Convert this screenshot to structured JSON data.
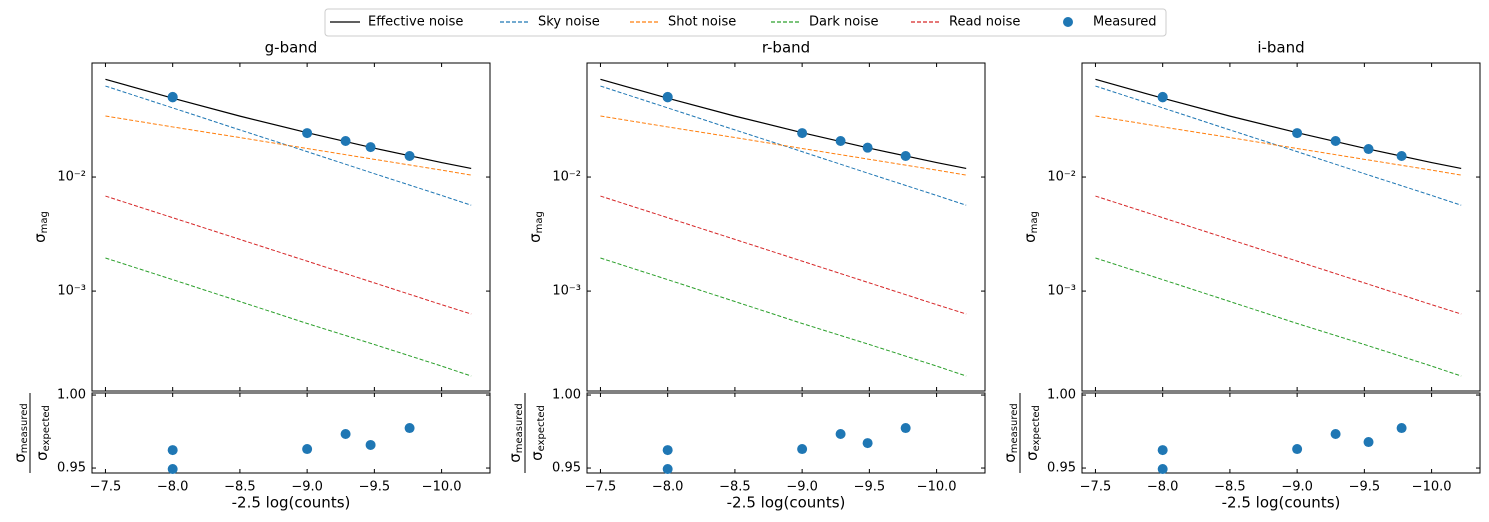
{
  "chart_data": [
    {
      "type": "line",
      "title": "g-band",
      "ylabel": {
        "symbol": "σ",
        "subscript": "mag"
      },
      "yscale": "log",
      "xlim": [
        -7.4,
        -10.36
      ],
      "ylim": [
        0.000133,
        0.1
      ],
      "xticks": [
        {
          "value": -7.5,
          "label": "−7.5"
        },
        {
          "value": -8.0,
          "label": "−8.0"
        },
        {
          "value": -8.5,
          "label": "−8.5"
        },
        {
          "value": -9.0,
          "label": "−9.0"
        },
        {
          "value": -9.5,
          "label": "−9.5"
        },
        {
          "value": -10.0,
          "label": "−10.0"
        }
      ],
      "yticks": [
        {
          "value": 0.01,
          "label": "10⁻²"
        },
        {
          "value": 0.001,
          "label": "10⁻³"
        }
      ],
      "series": [
        {
          "name": "Effective noise",
          "color": "#000000",
          "line": "solid",
          "x": [
            -7.5,
            -8.0,
            -8.5,
            -9.0,
            -9.5,
            -10.0,
            -10.22
          ],
          "values": [
            0.0719,
            0.0491,
            0.0342,
            0.0245,
            0.0179,
            0.0134,
            0.0119
          ]
        },
        {
          "name": "Sky noise",
          "color": "#1f77b4",
          "line": "dashed",
          "x": [
            -7.5,
            -8.0,
            -8.5,
            -9.0,
            -9.5,
            -10.0,
            -10.22
          ],
          "values": [
            0.0628,
            0.0404,
            0.0259,
            0.0167,
            0.0107,
            0.0069,
            0.00566
          ]
        },
        {
          "name": "Shot noise",
          "color": "#ff7f0e",
          "line": "dashed",
          "x": [
            -7.5,
            -8.0,
            -8.5,
            -9.0,
            -9.5,
            -10.0,
            -10.22
          ],
          "values": [
            0.0343,
            0.0275,
            0.0222,
            0.0178,
            0.0143,
            0.0115,
            0.0104
          ]
        },
        {
          "name": "Dark noise",
          "color": "#2ca02c",
          "line": "dashed",
          "x": [
            -7.5,
            -8.0,
            -8.5,
            -9.0,
            -9.5,
            -10.0,
            -10.22
          ],
          "values": [
            0.00195,
            0.00126,
            0.00081,
            0.00052,
            0.00034,
            0.00022,
            0.00018
          ]
        },
        {
          "name": "Read noise",
          "color": "#d62728",
          "line": "dashed",
          "x": [
            -7.5,
            -8.0,
            -8.5,
            -9.0,
            -9.5,
            -10.0,
            -10.22
          ],
          "values": [
            0.00681,
            0.0044,
            0.00284,
            0.00183,
            0.00118,
            0.00076,
            0.00063
          ]
        },
        {
          "name": "Measured",
          "color": "#1f77b4",
          "line": "none",
          "x": [
            -8.0,
            -8.0,
            -9.0,
            -9.286,
            -9.472,
            -9.762
          ],
          "values": [
            0.0504,
            0.05,
            0.0243,
            0.0207,
            0.0183,
            0.0153
          ]
        }
      ]
    },
    {
      "type": "scatter",
      "xlabel": "-2.5 log(counts)",
      "ylabel": {
        "numerator": {
          "symbol": "σ",
          "subscript": "measured"
        },
        "denominator": {
          "symbol": "σ",
          "subscript": "expected"
        }
      },
      "xlim": [
        -7.4,
        -10.36
      ],
      "ylim": [
        0.9466,
        1.0014
      ],
      "xticks": [
        {
          "value": -7.5,
          "label": "−7.5"
        },
        {
          "value": -8.0,
          "label": "−8.0"
        },
        {
          "value": -8.5,
          "label": "−8.5"
        },
        {
          "value": -9.0,
          "label": "−9.0"
        },
        {
          "value": -9.5,
          "label": "−9.5"
        },
        {
          "value": -10.0,
          "label": "−10.0"
        }
      ],
      "yticks": [
        {
          "value": 1.0,
          "label": "1.00"
        },
        0.95
      ],
      "color": "#1f77b4",
      "x": [
        -8.0,
        -8.0,
        -9.0,
        -9.286,
        -9.472,
        -9.762
      ],
      "values": [
        0.9623,
        0.9493,
        0.963,
        0.9733,
        0.9658,
        0.9774
      ]
    },
    {
      "type": "line",
      "title": "r-band",
      "ylabel": {
        "symbol": "σ",
        "subscript": "mag"
      },
      "yscale": "log",
      "xlim": [
        -7.4,
        -10.36
      ],
      "ylim": [
        0.000133,
        0.1
      ],
      "xticks": [
        {
          "value": -7.5,
          "label": "−7.5"
        },
        {
          "value": -8.0,
          "label": "−8.0"
        },
        {
          "value": -8.5,
          "label": "−8.5"
        },
        {
          "value": -9.0,
          "label": "−9.0"
        },
        {
          "value": -9.5,
          "label": "−9.5"
        },
        {
          "value": -10.0,
          "label": "−10.0"
        }
      ],
      "yticks": [
        {
          "value": 0.01,
          "label": "10⁻²"
        },
        {
          "value": 0.001,
          "label": "10⁻³"
        }
      ],
      "series": [
        {
          "name": "Effective noise",
          "color": "#000000",
          "line": "solid",
          "x": [
            -7.5,
            -8.0,
            -8.5,
            -9.0,
            -9.5,
            -10.0,
            -10.22
          ],
          "values": [
            0.0719,
            0.0491,
            0.0342,
            0.0245,
            0.0179,
            0.0134,
            0.0119
          ]
        },
        {
          "name": "Sky noise",
          "color": "#1f77b4",
          "line": "dashed",
          "x": [
            -7.5,
            -8.0,
            -8.5,
            -9.0,
            -9.5,
            -10.0,
            -10.22
          ],
          "values": [
            0.0628,
            0.0404,
            0.0259,
            0.0167,
            0.0107,
            0.0069,
            0.00566
          ]
        },
        {
          "name": "Shot noise",
          "color": "#ff7f0e",
          "line": "dashed",
          "x": [
            -7.5,
            -8.0,
            -8.5,
            -9.0,
            -9.5,
            -10.0,
            -10.22
          ],
          "values": [
            0.0343,
            0.0275,
            0.0222,
            0.0178,
            0.0143,
            0.0115,
            0.0104
          ]
        },
        {
          "name": "Dark noise",
          "color": "#2ca02c",
          "line": "dashed",
          "x": [
            -7.5,
            -8.0,
            -8.5,
            -9.0,
            -9.5,
            -10.0,
            -10.22
          ],
          "values": [
            0.00195,
            0.00126,
            0.00081,
            0.00052,
            0.00034,
            0.00022,
            0.00018
          ]
        },
        {
          "name": "Read noise",
          "color": "#d62728",
          "line": "dashed",
          "x": [
            -7.5,
            -8.0,
            -8.5,
            -9.0,
            -9.5,
            -10.0,
            -10.22
          ],
          "values": [
            0.00681,
            0.0044,
            0.00284,
            0.00183,
            0.00118,
            0.00076,
            0.00063
          ]
        },
        {
          "name": "Measured",
          "color": "#1f77b4",
          "line": "none",
          "x": [
            -8.0,
            -8.0,
            -9.0,
            -9.286,
            -9.487,
            -9.77
          ],
          "values": [
            0.0504,
            0.05,
            0.0243,
            0.0207,
            0.0181,
            0.0153
          ]
        }
      ]
    },
    {
      "type": "scatter",
      "xlabel": "-2.5 log(counts)",
      "ylabel": {
        "numerator": {
          "symbol": "σ",
          "subscript": "measured"
        },
        "denominator": {
          "symbol": "σ",
          "subscript": "expected"
        }
      },
      "xlim": [
        -7.4,
        -10.36
      ],
      "ylim": [
        0.9466,
        1.0014
      ],
      "xticks": [
        {
          "value": -7.5,
          "label": "−7.5"
        },
        {
          "value": -8.0,
          "label": "−8.0"
        },
        {
          "value": -8.5,
          "label": "−8.5"
        },
        {
          "value": -9.0,
          "label": "−9.0"
        },
        {
          "value": -9.5,
          "label": "−9.5"
        },
        {
          "value": -10.0,
          "label": "−10.0"
        }
      ],
      "yticks": [
        {
          "value": 1.0,
          "label": "1.00"
        },
        0.95
      ],
      "color": "#1f77b4",
      "x": [
        -8.0,
        -8.0,
        -9.0,
        -9.286,
        -9.487,
        -9.77
      ],
      "values": [
        0.9623,
        0.9493,
        0.963,
        0.9733,
        0.9671,
        0.9774
      ]
    },
    {
      "type": "line",
      "title": "i-band",
      "ylabel": {
        "symbol": "σ",
        "subscript": "mag"
      },
      "yscale": "log",
      "xlim": [
        -7.4,
        -10.36
      ],
      "ylim": [
        0.000133,
        0.1
      ],
      "xticks": [
        {
          "value": -7.5,
          "label": "−7.5"
        },
        {
          "value": -8.0,
          "label": "−8.0"
        },
        {
          "value": -8.5,
          "label": "−8.5"
        },
        {
          "value": -9.0,
          "label": "−9.0"
        },
        {
          "value": -9.5,
          "label": "−9.5"
        },
        {
          "value": -10.0,
          "label": "−10.0"
        }
      ],
      "yticks": [
        {
          "value": 0.01,
          "label": "10⁻²"
        },
        {
          "value": 0.001,
          "label": "10⁻³"
        }
      ],
      "series": [
        {
          "name": "Effective noise",
          "color": "#000000",
          "line": "solid",
          "x": [
            -7.5,
            -8.0,
            -8.5,
            -9.0,
            -9.5,
            -10.0,
            -10.22
          ],
          "values": [
            0.0719,
            0.0491,
            0.0342,
            0.0245,
            0.0179,
            0.0134,
            0.0119
          ]
        },
        {
          "name": "Sky noise",
          "color": "#1f77b4",
          "line": "dashed",
          "x": [
            -7.5,
            -8.0,
            -8.5,
            -9.0,
            -9.5,
            -10.0,
            -10.22
          ],
          "values": [
            0.0628,
            0.0404,
            0.0259,
            0.0167,
            0.0107,
            0.0069,
            0.00566
          ]
        },
        {
          "name": "Shot noise",
          "color": "#ff7f0e",
          "line": "dashed",
          "x": [
            -7.5,
            -8.0,
            -8.5,
            -9.0,
            -9.5,
            -10.0,
            -10.22
          ],
          "values": [
            0.0343,
            0.0275,
            0.0222,
            0.0178,
            0.0143,
            0.0115,
            0.0104
          ]
        },
        {
          "name": "Dark noise",
          "color": "#2ca02c",
          "line": "dashed",
          "x": [
            -7.5,
            -8.0,
            -8.5,
            -9.0,
            -9.5,
            -10.0,
            -10.22
          ],
          "values": [
            0.00195,
            0.00126,
            0.00081,
            0.00052,
            0.00034,
            0.00022,
            0.00018
          ]
        },
        {
          "name": "Read noise",
          "color": "#d62728",
          "line": "dashed",
          "x": [
            -7.5,
            -8.0,
            -8.5,
            -9.0,
            -9.5,
            -10.0,
            -10.22
          ],
          "values": [
            0.00681,
            0.0044,
            0.00284,
            0.00183,
            0.00118,
            0.00076,
            0.00063
          ]
        },
        {
          "name": "Measured",
          "color": "#1f77b4",
          "line": "none",
          "x": [
            -8.0,
            -8.0,
            -9.0,
            -9.286,
            -9.531,
            -9.777
          ],
          "values": [
            0.0504,
            0.05,
            0.0243,
            0.0207,
            0.0176,
            0.0153
          ]
        }
      ]
    },
    {
      "type": "scatter",
      "xlabel": "-2.5 log(counts)",
      "ylabel": {
        "numerator": {
          "symbol": "σ",
          "subscript": "measured"
        },
        "denominator": {
          "symbol": "σ",
          "subscript": "expected"
        }
      },
      "xlim": [
        -7.4,
        -10.36
      ],
      "ylim": [
        0.9466,
        1.0014
      ],
      "xticks": [
        {
          "value": -7.5,
          "label": "−7.5"
        },
        {
          "value": -8.0,
          "label": "−8.0"
        },
        {
          "value": -8.5,
          "label": "−8.5"
        },
        {
          "value": -9.0,
          "label": "−9.0"
        },
        {
          "value": -9.5,
          "label": "−9.5"
        },
        {
          "value": -10.0,
          "label": "−10.0"
        }
      ],
      "yticks": [
        {
          "value": 1.0,
          "label": "1.00"
        },
        0.95
      ],
      "color": "#1f77b4",
      "x": [
        -8.0,
        -8.0,
        -9.0,
        -9.286,
        -9.531,
        -9.777
      ],
      "values": [
        0.9623,
        0.9493,
        0.963,
        0.9733,
        0.9678,
        0.9774
      ]
    }
  ]
}
